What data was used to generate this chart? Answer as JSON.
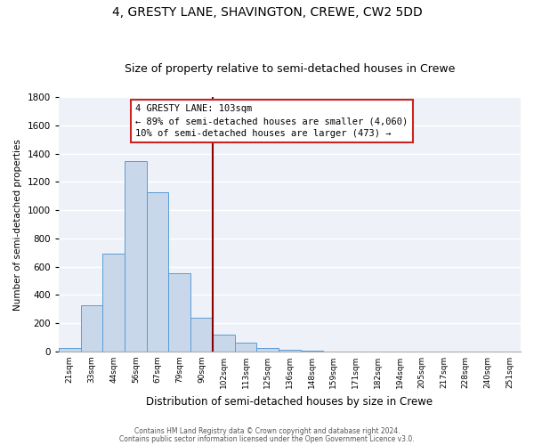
{
  "title": "4, GRESTY LANE, SHAVINGTON, CREWE, CW2 5DD",
  "subtitle": "Size of property relative to semi-detached houses in Crewe",
  "xlabel": "Distribution of semi-detached houses by size in Crewe",
  "ylabel": "Number of semi-detached properties",
  "categories": [
    "21sqm",
    "33sqm",
    "44sqm",
    "56sqm",
    "67sqm",
    "79sqm",
    "90sqm",
    "102sqm",
    "113sqm",
    "125sqm",
    "136sqm",
    "148sqm",
    "159sqm",
    "171sqm",
    "182sqm",
    "194sqm",
    "205sqm",
    "217sqm",
    "228sqm",
    "240sqm",
    "251sqm"
  ],
  "bar_values": [
    25,
    325,
    695,
    1345,
    1130,
    555,
    240,
    120,
    65,
    25,
    15,
    5,
    0,
    0,
    0,
    0,
    0,
    0,
    0,
    0,
    0
  ],
  "bar_color": "#c8d8ea",
  "bar_edge_color": "#5b9bd5",
  "vline_color": "#8b0000",
  "annotation_line1": "4 GRESTY LANE: 103sqm",
  "annotation_line2": "← 89% of semi-detached houses are smaller (4,060)",
  "annotation_line3": "10% of semi-detached houses are larger (473) →",
  "annotation_box_color": "#cc2222",
  "ylim": [
    0,
    1800
  ],
  "yticks": [
    0,
    200,
    400,
    600,
    800,
    1000,
    1200,
    1400,
    1600,
    1800
  ],
  "background_color": "#eef2f8",
  "grid_color": "#ffffff",
  "footer1": "Contains HM Land Registry data © Crown copyright and database right 2024.",
  "footer2": "Contains public sector information licensed under the Open Government Licence v3.0.",
  "title_fontsize": 10,
  "subtitle_fontsize": 9,
  "figsize": [
    6.0,
    5.0
  ],
  "dpi": 100
}
